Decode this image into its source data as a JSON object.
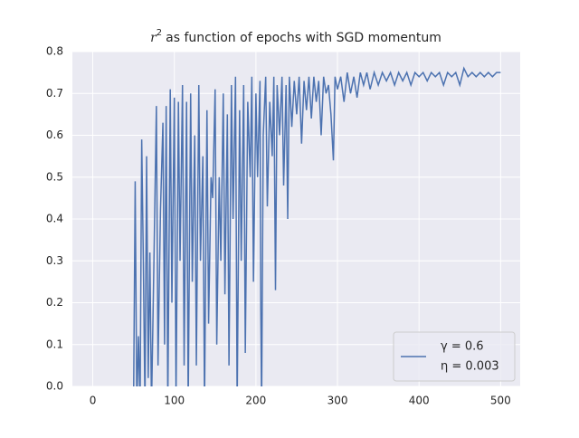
{
  "chart_data": {
    "type": "line",
    "title": {
      "symbol": "r",
      "exponent": "2",
      "text": "as function of epochs with SGD momentum"
    },
    "series": [
      {
        "name": [
          "γ = 0.6",
          "η = 0.003"
        ],
        "color": "#4c72b0",
        "x": [
          50,
          52,
          54,
          56,
          58,
          60,
          62,
          64,
          66,
          68,
          70,
          72,
          75,
          78,
          80,
          83,
          86,
          88,
          90,
          92,
          95,
          97,
          100,
          102,
          105,
          107,
          110,
          112,
          115,
          117,
          120,
          122,
          125,
          127,
          130,
          132,
          135,
          137,
          140,
          142,
          145,
          147,
          150,
          152,
          155,
          157,
          160,
          162,
          165,
          167,
          170,
          172,
          175,
          177,
          180,
          182,
          185,
          187,
          190,
          193,
          195,
          197,
          200,
          202,
          205,
          206,
          207,
          209,
          212,
          214,
          217,
          220,
          222,
          224,
          226,
          229,
          232,
          234,
          237,
          239,
          241,
          244,
          247,
          250,
          253,
          256,
          259,
          262,
          265,
          268,
          271,
          274,
          277,
          280,
          283,
          286,
          289,
          292,
          295,
          297,
          300,
          304,
          308,
          312,
          316,
          320,
          324,
          328,
          332,
          336,
          340,
          345,
          350,
          355,
          360,
          365,
          370,
          375,
          380,
          385,
          390,
          395,
          400,
          405,
          410,
          415,
          420,
          425,
          430,
          435,
          440,
          445,
          450,
          455,
          460,
          465,
          470,
          475,
          480,
          485,
          490,
          495,
          500
        ],
        "values": [
          -0.05,
          0.49,
          -0.05,
          0.12,
          -0.05,
          0.59,
          0.3,
          -0.05,
          0.55,
          0.02,
          0.32,
          -0.05,
          0.3,
          0.67,
          0.05,
          0.42,
          0.63,
          0.1,
          0.67,
          -0.05,
          0.71,
          0.2,
          0.69,
          -0.05,
          0.68,
          0.3,
          0.72,
          0.05,
          0.68,
          -0.05,
          0.7,
          0.25,
          0.6,
          0.05,
          0.72,
          0.3,
          0.55,
          -0.05,
          0.66,
          0.15,
          0.5,
          0.45,
          0.71,
          0.1,
          0.5,
          0.3,
          0.7,
          0.22,
          0.65,
          0.05,
          0.72,
          0.4,
          0.74,
          -0.05,
          0.66,
          0.3,
          0.72,
          0.08,
          0.68,
          0.5,
          0.74,
          0.25,
          0.7,
          0.5,
          0.73,
          0.18,
          -0.05,
          0.6,
          0.74,
          0.43,
          0.68,
          0.55,
          0.74,
          0.23,
          0.72,
          0.6,
          0.74,
          0.48,
          0.72,
          0.4,
          0.74,
          0.62,
          0.73,
          0.65,
          0.74,
          0.58,
          0.73,
          0.66,
          0.74,
          0.64,
          0.74,
          0.68,
          0.73,
          0.6,
          0.74,
          0.7,
          0.72,
          0.65,
          0.54,
          0.74,
          0.71,
          0.74,
          0.68,
          0.75,
          0.7,
          0.74,
          0.69,
          0.75,
          0.72,
          0.75,
          0.71,
          0.75,
          0.72,
          0.75,
          0.73,
          0.75,
          0.72,
          0.75,
          0.73,
          0.75,
          0.72,
          0.75,
          0.74,
          0.75,
          0.73,
          0.75,
          0.74,
          0.75,
          0.72,
          0.75,
          0.74,
          0.75,
          0.72,
          0.76,
          0.74,
          0.75,
          0.74,
          0.75,
          0.74,
          0.75,
          0.74,
          0.75,
          0.75
        ]
      }
    ],
    "xlim": [
      -25,
      524
    ],
    "xticks": [
      0,
      100,
      200,
      300,
      400,
      500
    ],
    "ylim": [
      0,
      0.8
    ],
    "yticks": [
      {
        "value": 0,
        "label": "0.0"
      },
      0.1,
      0.2,
      0.3,
      0.4,
      0.5,
      0.6,
      0.7,
      0.8
    ],
    "grid": true,
    "legend": "lower right"
  }
}
